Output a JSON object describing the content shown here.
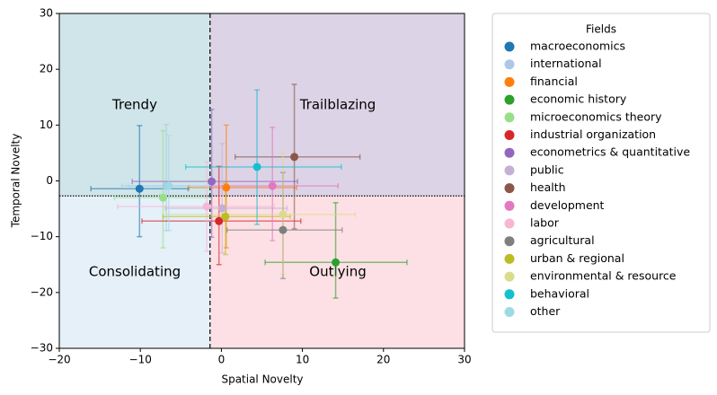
{
  "chart_data": {
    "type": "scatter",
    "x_label": "Spatial Novelty",
    "y_label": "Temporal Novelty",
    "xlim": [
      -20,
      30
    ],
    "ylim": [
      -30,
      30
    ],
    "xticks": [
      {
        "value": -20,
        "label": "−20"
      },
      {
        "value": -10,
        "label": "−10"
      },
      0,
      10,
      20,
      30
    ],
    "yticks": [
      {
        "value": -30,
        "label": "−30"
      },
      {
        "value": -20,
        "label": "−20"
      },
      {
        "value": -10,
        "label": "−10"
      },
      0,
      10,
      20,
      30
    ],
    "vline": -1.4,
    "hline": -2.7,
    "quadrants": {
      "top_left": {
        "label": "Trendy",
        "color": "#d0e5e9"
      },
      "top_right": {
        "label": "Trailblazing",
        "color": "#ddd3e6"
      },
      "bottom_left": {
        "label": "Consolidating",
        "color": "#e5f0f9"
      },
      "bottom_right": {
        "label": "Outlying",
        "color": "#fde0e5"
      }
    },
    "legend_title": "Fields",
    "legend": "outside right",
    "series": [
      {
        "name": "macroeconomics",
        "color": "#1f77b4",
        "x": -10.1,
        "y": -1.4,
        "xerr": [
          6,
          6
        ],
        "yerr": [
          8.6,
          11.3
        ]
      },
      {
        "name": "international",
        "color": "#aec7e8",
        "x": -6.8,
        "y": -0.9,
        "xerr": [
          5.5,
          5.5
        ],
        "yerr": [
          8,
          11
        ]
      },
      {
        "name": "financial",
        "color": "#ff7f0e",
        "x": 0.6,
        "y": -1.2,
        "xerr": [
          4.6,
          8.7
        ],
        "yerr": [
          10.8,
          11.2
        ]
      },
      {
        "name": "economic history",
        "color": "#2ca02c",
        "x": 14.1,
        "y": -14.6,
        "xerr": [
          8.7,
          8.8
        ],
        "yerr": [
          6.4,
          10.7
        ]
      },
      {
        "name": "microeconomics theory",
        "color": "#98df8a",
        "x": -7.2,
        "y": -3.0,
        "xerr": [
          6,
          6
        ],
        "yerr": [
          9,
          12
        ]
      },
      {
        "name": "industrial organization",
        "color": "#d62728",
        "x": -0.3,
        "y": -7.2,
        "xerr": [
          9.5,
          10.1
        ],
        "yerr": [
          7.8,
          9.8
        ]
      },
      {
        "name": "econometrics & quantitative",
        "color": "#9467bd",
        "x": -1.2,
        "y": -0.1,
        "xerr": [
          9.8,
          10.6
        ],
        "yerr": [
          10,
          12.9
        ]
      },
      {
        "name": "public",
        "color": "#c5b0d5",
        "x": 0.1,
        "y": -4.9,
        "xerr": [
          7,
          8
        ],
        "yerr": [
          8,
          11.6
        ]
      },
      {
        "name": "health",
        "color": "#8c564b",
        "x": 9.0,
        "y": 4.3,
        "xerr": [
          7.3,
          8.1
        ],
        "yerr": [
          12.9,
          13
        ]
      },
      {
        "name": "development",
        "color": "#e377c2",
        "x": 6.3,
        "y": -0.9,
        "xerr": [
          7.5,
          8.1
        ],
        "yerr": [
          9.8,
          10.5
        ]
      },
      {
        "name": "labor",
        "color": "#f7b6d2",
        "x": -1.8,
        "y": -4.6,
        "xerr": [
          11,
          8.3
        ],
        "yerr": [
          8,
          8
        ]
      },
      {
        "name": "agricultural",
        "color": "#7f7f7f",
        "x": 7.6,
        "y": -8.8,
        "xerr": [
          6.9,
          7.3
        ],
        "yerr": [
          8.7,
          10.3
        ]
      },
      {
        "name": "urban & regional",
        "color": "#bcbd22",
        "x": 0.5,
        "y": -6.4,
        "xerr": [
          7.7,
          8
        ],
        "yerr": [
          6.8,
          6
        ]
      },
      {
        "name": "environmental & resource",
        "color": "#dbdb8d",
        "x": 7.6,
        "y": -6.0,
        "xerr": [
          14.4,
          8.9
        ],
        "yerr": [
          10.7,
          11
        ]
      },
      {
        "name": "behavioral",
        "color": "#17becf",
        "x": 4.4,
        "y": 2.5,
        "xerr": [
          8.8,
          10.4
        ],
        "yerr": [
          10.3,
          13.8
        ]
      },
      {
        "name": "other",
        "color": "#9edae5",
        "x": -6.5,
        "y": -0.9,
        "xerr": [
          5,
          5
        ],
        "yerr": [
          8,
          9
        ]
      }
    ]
  }
}
